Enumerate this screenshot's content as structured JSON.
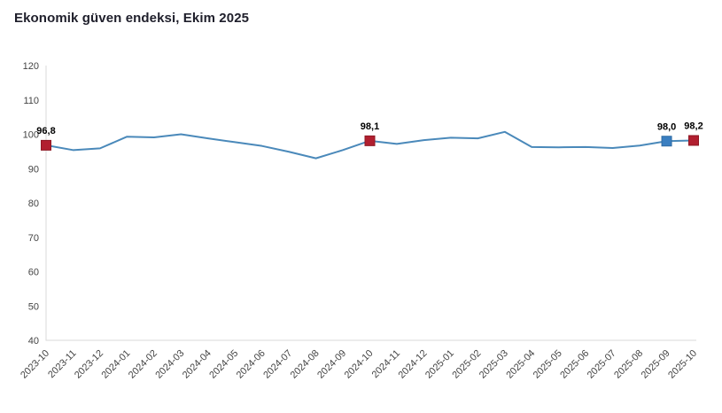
{
  "title": "Ekonomik güven endeksi, Ekim 2025",
  "colors": {
    "line": "#4a89ba",
    "marker_red": "#b11f2f",
    "marker_red_border": "#8e1824",
    "marker_blue": "#3a7fc1",
    "marker_blue_border": "#2f6ba3",
    "axis_line": "#d8d8d8",
    "tick_text": "#444444",
    "title_text": "#1f1f2b",
    "data_label_text": "#000000"
  },
  "chart_data": {
    "type": "line",
    "title": "Ekonomik güven endeksi, Ekim 2025",
    "xlabel": "",
    "ylabel": "",
    "ylim": [
      40,
      120
    ],
    "yticks": [
      40,
      50,
      60,
      70,
      80,
      90,
      100,
      110,
      120
    ],
    "grid": false,
    "legend": "none",
    "x": [
      "2023-10",
      "2023-11",
      "2023-12",
      "2024-01",
      "2024-02",
      "2024-03",
      "2024-04",
      "2024-05",
      "2024-06",
      "2024-07",
      "2024-08",
      "2024-09",
      "2024-10",
      "2024-11",
      "2024-12",
      "2025-01",
      "2025-02",
      "2025-03",
      "2025-04",
      "2025-05",
      "2025-06",
      "2025-07",
      "2025-08",
      "2025-09",
      "2025-10"
    ],
    "series": [
      {
        "name": "Ekonomik güven endeksi",
        "values": [
          96.8,
          95.4,
          95.9,
          99.3,
          99.1,
          100.0,
          98.8,
          97.7,
          96.6,
          94.9,
          93.0,
          95.4,
          98.1,
          97.2,
          98.3,
          99.0,
          98.8,
          100.7,
          96.3,
          96.2,
          96.3,
          96.0,
          96.7,
          98.0,
          98.2
        ]
      }
    ],
    "annotations": [
      {
        "x": "2023-10",
        "label": "96,8",
        "marker": "red-square-marker"
      },
      {
        "x": "2024-10",
        "label": "98,1",
        "marker": "red-square-marker"
      },
      {
        "x": "2025-09",
        "label": "98,0",
        "marker": "blue-square-marker"
      },
      {
        "x": "2025-10",
        "label": "98,2",
        "marker": "red-square-marker"
      }
    ]
  }
}
